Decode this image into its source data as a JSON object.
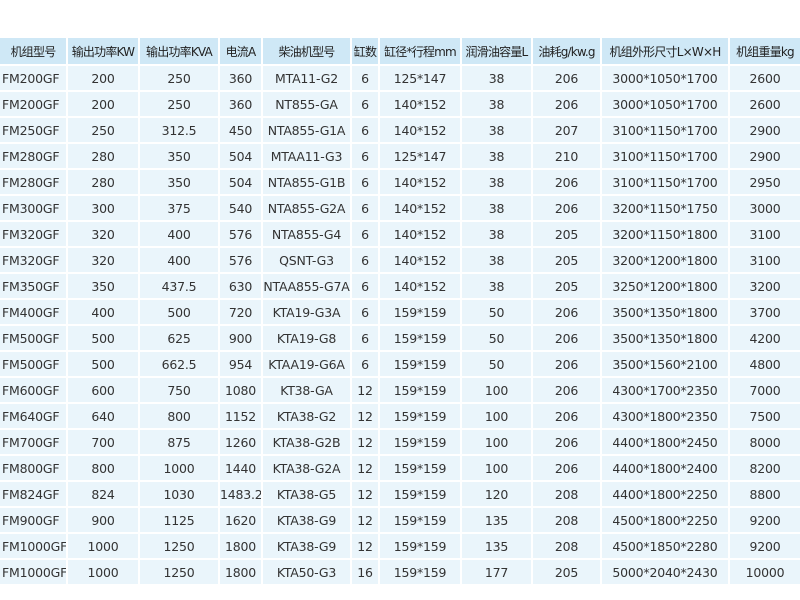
{
  "table": {
    "header": [
      "机组型号",
      "输出功率KW",
      "输出功率KVA",
      "电流A",
      "柴油机型号",
      "缸数",
      "缸径*行程mm",
      "润滑油容量L",
      "油耗g/kw.g",
      "机组外形尺寸L×W×H",
      "机组重量kg"
    ],
    "rows": [
      [
        "FM200GF",
        "200",
        "250",
        "360",
        "MTA11-G2",
        "6",
        "125*147",
        "38",
        "206",
        "3000*1050*1700",
        "2600"
      ],
      [
        "FM200GF",
        "200",
        "250",
        "360",
        "NT855-GA",
        "6",
        "140*152",
        "38",
        "206",
        "3000*1050*1700",
        "2600"
      ],
      [
        "FM250GF",
        "250",
        "312.5",
        "450",
        "NTA855-G1A",
        "6",
        "140*152",
        "38",
        "207",
        "3100*1150*1700",
        "2900"
      ],
      [
        "FM280GF",
        "280",
        "350",
        "504",
        "MTAA11-G3",
        "6",
        "125*147",
        "38",
        "210",
        "3100*1150*1700",
        "2900"
      ],
      [
        "FM280GF",
        "280",
        "350",
        "504",
        "NTA855-G1B",
        "6",
        "140*152",
        "38",
        "206",
        "3100*1150*1700",
        "2950"
      ],
      [
        "FM300GF",
        "300",
        "375",
        "540",
        "NTA855-G2A",
        "6",
        "140*152",
        "38",
        "206",
        "3200*1150*1750",
        "3000"
      ],
      [
        "FM320GF",
        "320",
        "400",
        "576",
        "NTA855-G4",
        "6",
        "140*152",
        "38",
        "205",
        "3200*1150*1800",
        "3100"
      ],
      [
        "FM320GF",
        "320",
        "400",
        "576",
        "QSNT-G3",
        "6",
        "140*152",
        "38",
        "205",
        "3200*1200*1800",
        "3100"
      ],
      [
        "FM350GF",
        "350",
        "437.5",
        "630",
        "NTAA855-G7A",
        "6",
        "140*152",
        "38",
        "205",
        "3250*1200*1800",
        "3200"
      ],
      [
        "FM400GF",
        "400",
        "500",
        "720",
        "KTA19-G3A",
        "6",
        "159*159",
        "50",
        "206",
        "3500*1350*1800",
        "3700"
      ],
      [
        "FM500GF",
        "500",
        "625",
        "900",
        "KTA19-G8",
        "6",
        "159*159",
        "50",
        "206",
        "3500*1350*1800",
        "4200"
      ],
      [
        "FM500GF",
        "500",
        "662.5",
        "954",
        "KTAA19-G6A",
        "6",
        "159*159",
        "50",
        "206",
        "3500*1560*2100",
        "4800"
      ],
      [
        "FM600GF",
        "600",
        "750",
        "1080",
        "KT38-GA",
        "12",
        "159*159",
        "100",
        "206",
        "4300*1700*2350",
        "7000"
      ],
      [
        "FM640GF",
        "640",
        "800",
        "1152",
        "KTA38-G2",
        "12",
        "159*159",
        "100",
        "206",
        "4300*1800*2350",
        "7500"
      ],
      [
        "FM700GF",
        "700",
        "875",
        "1260",
        "KTA38-G2B",
        "12",
        "159*159",
        "100",
        "206",
        "4400*1800*2450",
        "8000"
      ],
      [
        "FM800GF",
        "800",
        "1000",
        "1440",
        "KTA38-G2A",
        "12",
        "159*159",
        "100",
        "206",
        "4400*1800*2400",
        "8200"
      ],
      [
        "FM824GF",
        "824",
        "1030",
        "1483.2",
        "KTA38-G5",
        "12",
        "159*159",
        "120",
        "208",
        "4400*1800*2250",
        "8800"
      ],
      [
        "FM900GF",
        "900",
        "1125",
        "1620",
        "KTA38-G9",
        "12",
        "159*159",
        "135",
        "208",
        "4500*1800*2250",
        "9200"
      ],
      [
        "FM1000GF",
        "1000",
        "1250",
        "1800",
        "KTA38-G9",
        "12",
        "159*159",
        "135",
        "208",
        "4500*1850*2280",
        "9200"
      ],
      [
        "FM1000GF",
        "1000",
        "1250",
        "1800",
        "KTA50-G3",
        "16",
        "159*159",
        "177",
        "205",
        "5000*2040*2430",
        "10000"
      ]
    ]
  }
}
